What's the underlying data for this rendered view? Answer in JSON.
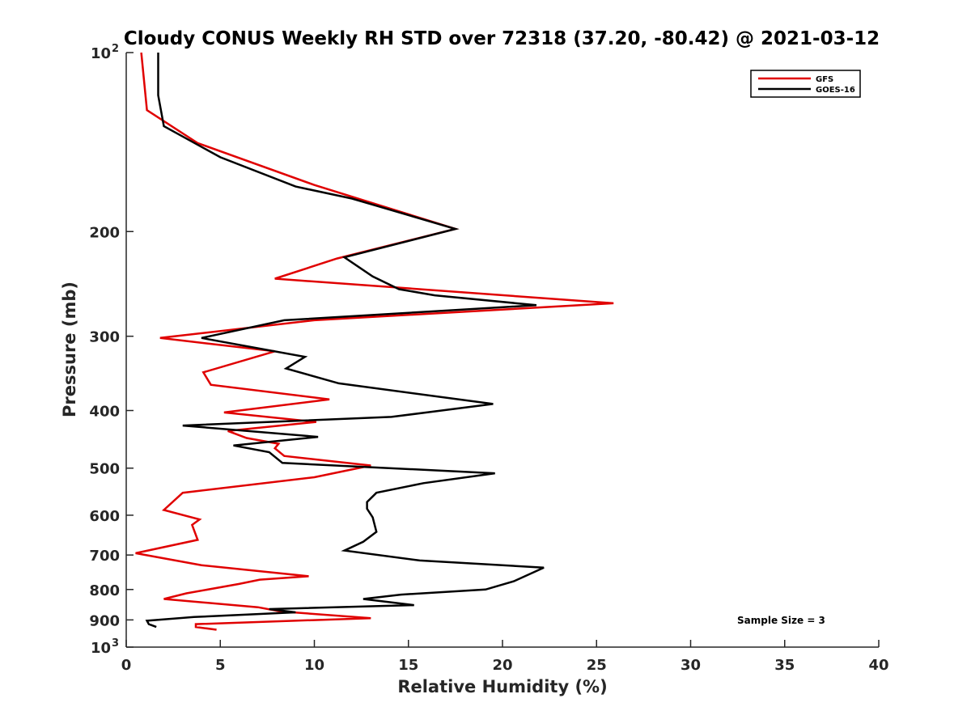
{
  "chart_data": {
    "type": "line",
    "title": "Cloudy CONUS Weekly RH STD over 72318 (37.20, -80.42) @ 2021-03-12",
    "xlabel": "Relative Humidity (%)",
    "ylabel": "Pressure (mb)",
    "xlim": [
      0,
      40
    ],
    "ylim": [
      100,
      1000
    ],
    "yscale": "log",
    "y_reversed": true,
    "xticks": [
      0,
      5,
      10,
      15,
      20,
      25,
      30,
      35,
      40
    ],
    "xtick_labels": [
      "0",
      "5",
      "10",
      "15",
      "20",
      "25",
      "30",
      "35",
      "40"
    ],
    "yticks": [
      100,
      200,
      300,
      400,
      500,
      600,
      700,
      800,
      900,
      1000
    ],
    "ytick_labels": [
      {
        "base": "10",
        "exp": "2"
      },
      {
        "base": "200"
      },
      {
        "base": "300"
      },
      {
        "base": "400"
      },
      {
        "base": "500"
      },
      {
        "base": "600"
      },
      {
        "base": "700"
      },
      {
        "base": "800"
      },
      {
        "base": "900"
      },
      {
        "base": "10",
        "exp": "3"
      }
    ],
    "legend_position": "top-right",
    "annotation": "Sample Size = 3",
    "series": [
      {
        "name": "GFS",
        "color": "#e00000",
        "points": [
          [
            0.8,
            100
          ],
          [
            1.1,
            125
          ],
          [
            3.8,
            142
          ],
          [
            10,
            167
          ],
          [
            17.5,
            198
          ],
          [
            11.2,
            222
          ],
          [
            7.9,
            240
          ],
          [
            25.9,
            264
          ],
          [
            10,
            282
          ],
          [
            1.8,
            302
          ],
          [
            7.9,
            318
          ],
          [
            4.1,
            345
          ],
          [
            4.5,
            362
          ],
          [
            10.8,
            383
          ],
          [
            5.2,
            403
          ],
          [
            10.1,
            418
          ],
          [
            5.4,
            433
          ],
          [
            6.4,
            445
          ],
          [
            8.1,
            455
          ],
          [
            7.9,
            463
          ],
          [
            8.4,
            477
          ],
          [
            13,
            495
          ],
          [
            10,
            518
          ],
          [
            3,
            550
          ],
          [
            2,
            588
          ],
          [
            3.9,
            610
          ],
          [
            3.5,
            623
          ],
          [
            3.8,
            660
          ],
          [
            0.5,
            695
          ],
          [
            4,
            728
          ],
          [
            9.7,
            760
          ],
          [
            7.1,
            770
          ],
          [
            6,
            783
          ],
          [
            3.2,
            812
          ],
          [
            2,
            830
          ],
          [
            7,
            857
          ],
          [
            8.2,
            871
          ],
          [
            13,
            894
          ],
          [
            3.7,
            915
          ],
          [
            3.7,
            925
          ],
          [
            4.8,
            935
          ]
        ]
      },
      {
        "name": "GOES-16",
        "color": "#000000",
        "points": [
          [
            1.7,
            100
          ],
          [
            1.7,
            118
          ],
          [
            2,
            133
          ],
          [
            5,
            150
          ],
          [
            9,
            168
          ],
          [
            12,
            176
          ],
          [
            17.5,
            198
          ],
          [
            11.6,
            221
          ],
          [
            13.1,
            238
          ],
          [
            14.5,
            250
          ],
          [
            16.4,
            256
          ],
          [
            21.8,
            266
          ],
          [
            8.4,
            282
          ],
          [
            4,
            302
          ],
          [
            9.5,
            325
          ],
          [
            8.5,
            340
          ],
          [
            11.3,
            360
          ],
          [
            19.5,
            390
          ],
          [
            14.1,
            410
          ],
          [
            3,
            424
          ],
          [
            10.2,
            443
          ],
          [
            5.7,
            458
          ],
          [
            7.6,
            470
          ],
          [
            8.3,
            490
          ],
          [
            19.6,
            510
          ],
          [
            15.8,
            530
          ],
          [
            13.3,
            550
          ],
          [
            12.8,
            570
          ],
          [
            12.8,
            585
          ],
          [
            13.1,
            605
          ],
          [
            13.3,
            640
          ],
          [
            12.6,
            665
          ],
          [
            11.6,
            688
          ],
          [
            15.6,
            715
          ],
          [
            22.2,
            735
          ],
          [
            20.6,
            775
          ],
          [
            19.1,
            800
          ],
          [
            14.6,
            816
          ],
          [
            12.6,
            830
          ],
          [
            15.3,
            850
          ],
          [
            7.6,
            863
          ],
          [
            9,
            874
          ],
          [
            3.6,
            890
          ],
          [
            1.1,
            903
          ],
          [
            1.2,
            915
          ],
          [
            1.6,
            925
          ]
        ]
      }
    ]
  }
}
